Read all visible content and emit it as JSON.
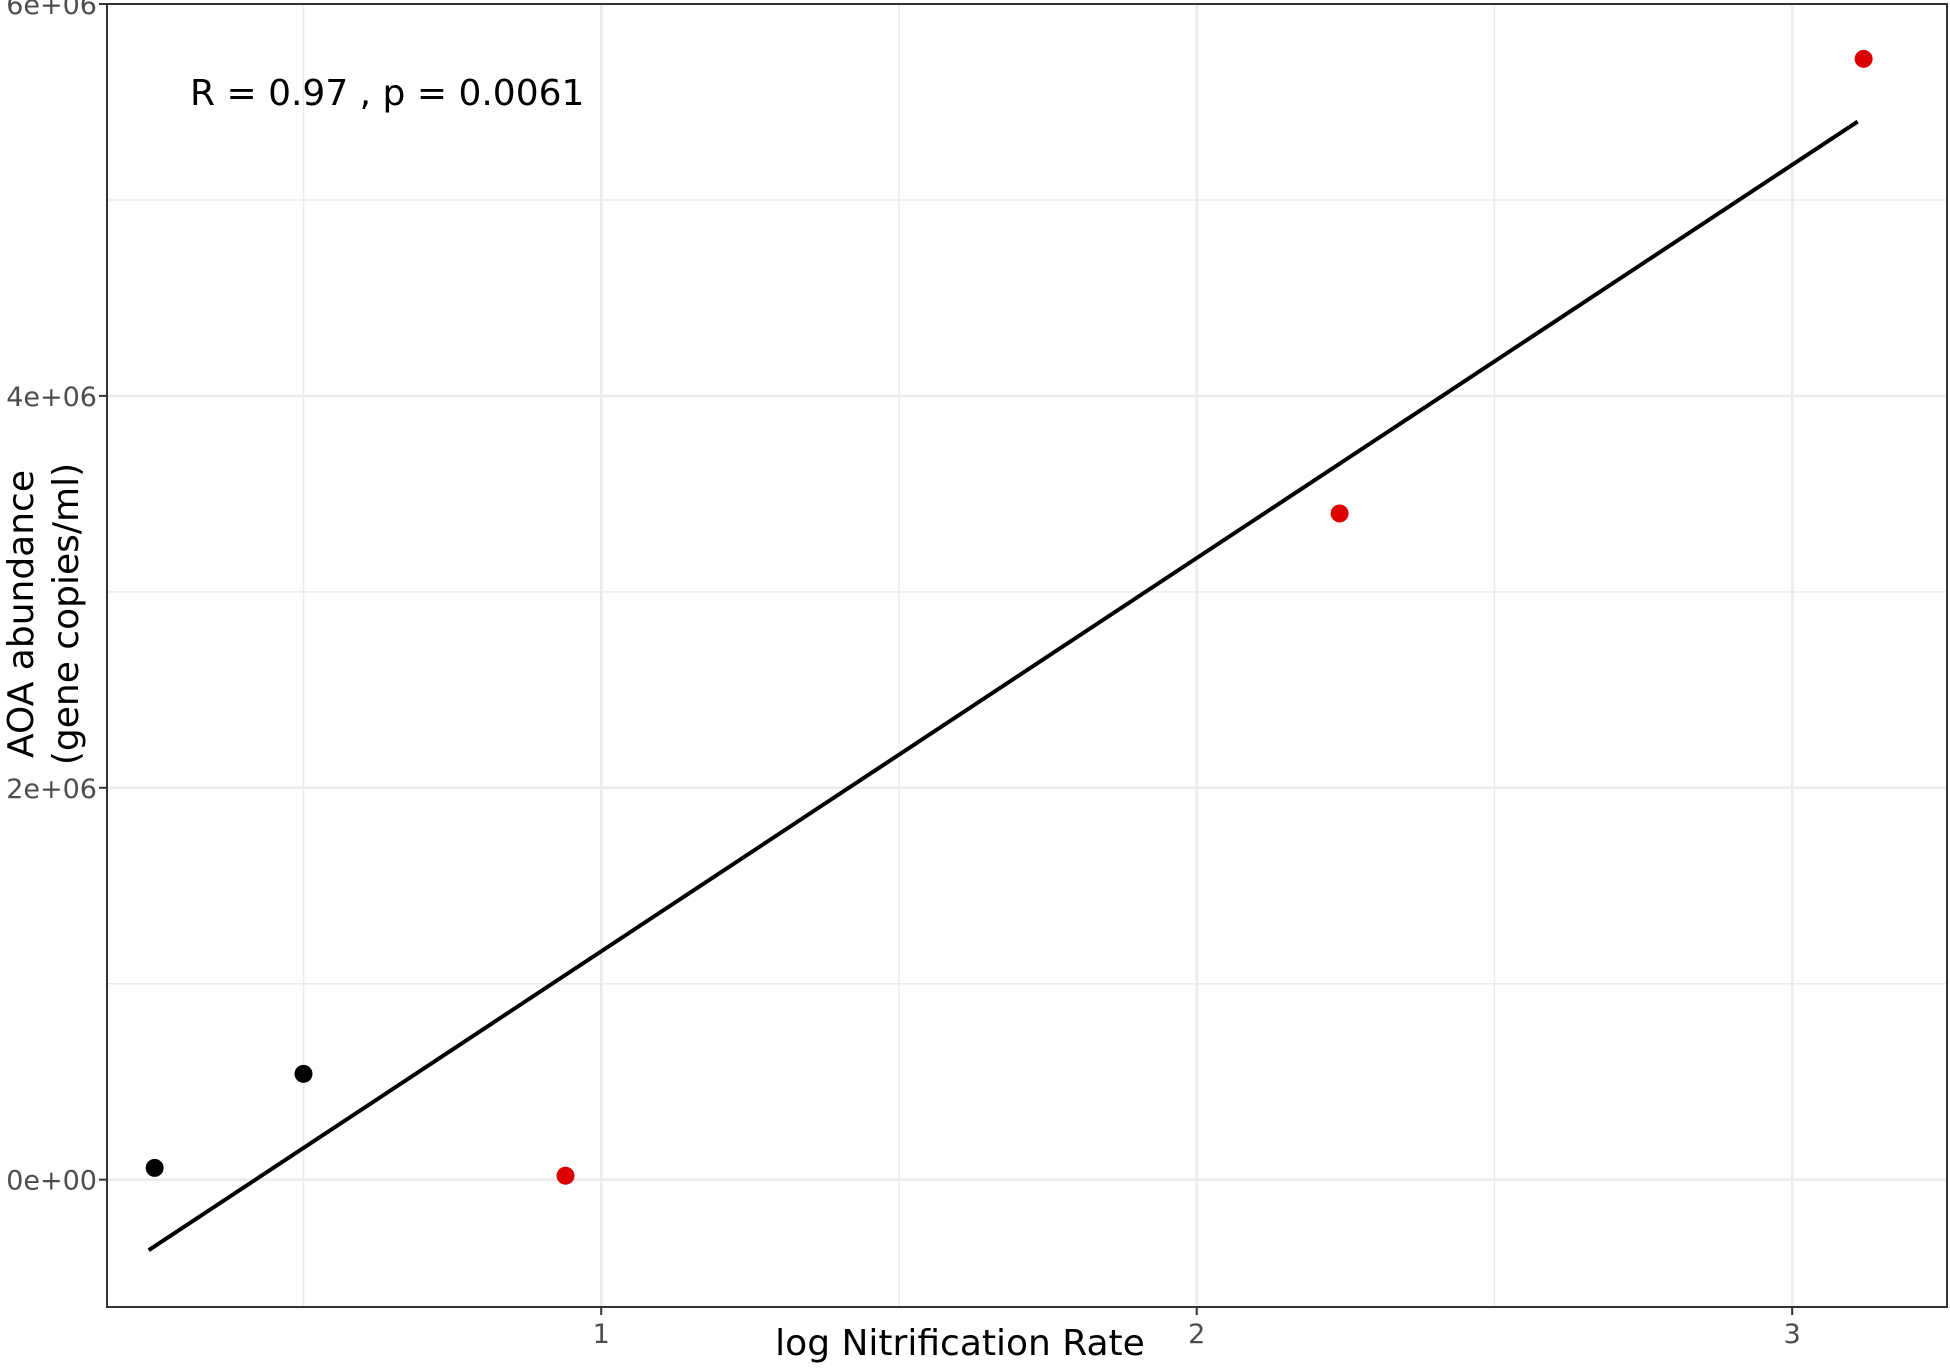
{
  "chart_data": {
    "type": "scatter",
    "title": "",
    "xlabel": "log Nitrification Rate",
    "ylabel": [
      "AOA abundance",
      "(gene copies/ml)"
    ],
    "xlim": [
      0.17,
      3.26
    ],
    "ylim": [
      -650000,
      6000000
    ],
    "x_ticks": [
      {
        "value": 1,
        "label": "1"
      },
      {
        "value": 2,
        "label": "2"
      },
      {
        "value": 3,
        "label": "3"
      }
    ],
    "x_minor_ticks": [
      0.5,
      1.5,
      2.5
    ],
    "y_ticks": [
      {
        "value": 0,
        "label": "0e+00"
      },
      {
        "value": 2000000,
        "label": "2e+06"
      },
      {
        "value": 4000000,
        "label": "4e+06"
      },
      {
        "value": 6000000,
        "label": "6e+06"
      }
    ],
    "y_minor_ticks": [
      1000000,
      3000000,
      5000000
    ],
    "grid": true,
    "annotation": "R = 0.97 , p = 0.0061",
    "points": [
      {
        "x": 0.25,
        "y": 60000,
        "color": "#000000"
      },
      {
        "x": 0.5,
        "y": 540000,
        "color": "#000000"
      },
      {
        "x": 0.94,
        "y": 20000,
        "color": "#dd0000"
      },
      {
        "x": 2.24,
        "y": 3400000,
        "color": "#dd0000"
      },
      {
        "x": 3.12,
        "y": 5720000,
        "color": "#dd0000"
      }
    ],
    "fit_line": {
      "x": [
        0.24,
        3.11
      ],
      "y": [
        -360000,
        5400000
      ],
      "color": "#000000"
    },
    "colors": {
      "grid": "#ebebeb",
      "axis": "#333333",
      "red": "#dd0000",
      "black": "#000000"
    }
  }
}
